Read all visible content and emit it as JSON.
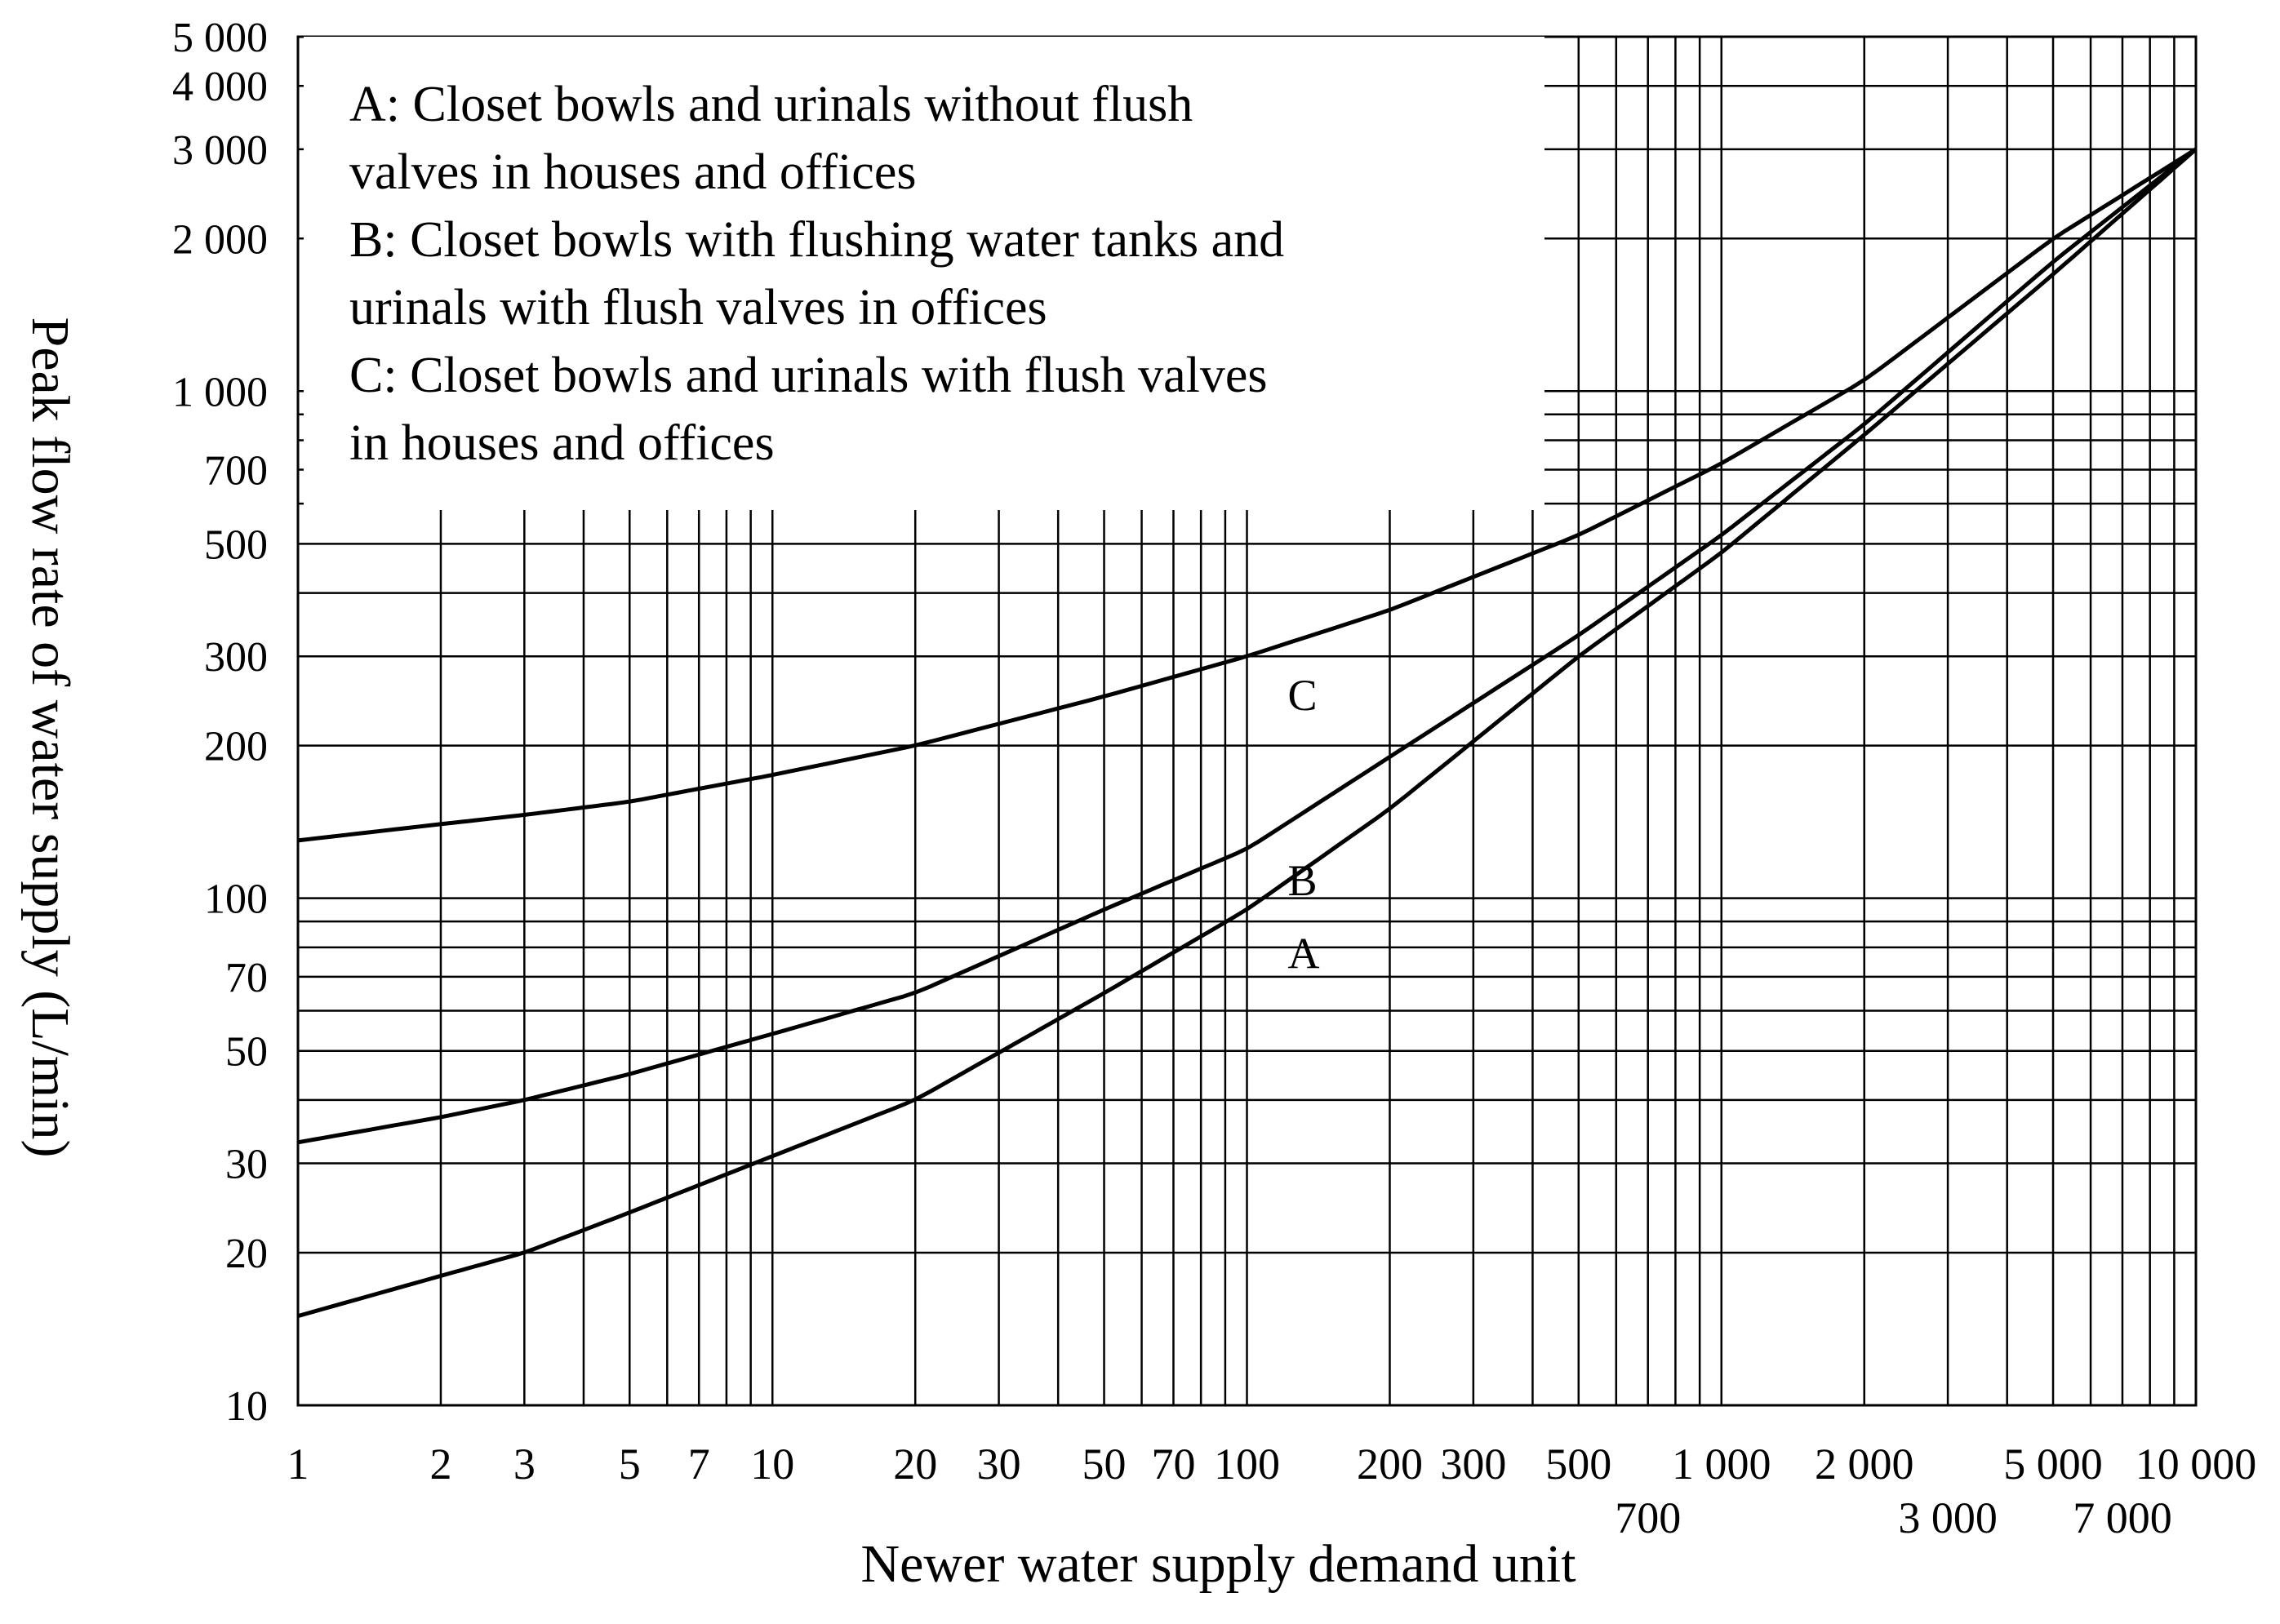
{
  "chart_data": {
    "type": "line",
    "xlabel": "Newer water supply demand unit",
    "ylabel": "Peak flow rate of water supply (L/min)",
    "x_scale": "log",
    "y_scale": "log",
    "xlim": [
      1,
      10000
    ],
    "ylim": [
      10,
      5000
    ],
    "grid": true,
    "x_ticks": [
      {
        "value": 1,
        "label": "1",
        "row": 1
      },
      {
        "value": 2,
        "label": "2",
        "row": 1
      },
      {
        "value": 3,
        "label": "3",
        "row": 1
      },
      {
        "value": 5,
        "label": "5",
        "row": 1
      },
      {
        "value": 7,
        "label": "7",
        "row": 1
      },
      {
        "value": 10,
        "label": "10",
        "row": 1
      },
      {
        "value": 20,
        "label": "20",
        "row": 1
      },
      {
        "value": 30,
        "label": "30",
        "row": 1
      },
      {
        "value": 50,
        "label": "50",
        "row": 1
      },
      {
        "value": 70,
        "label": "70",
        "row": 1
      },
      {
        "value": 100,
        "label": "100",
        "row": 1
      },
      {
        "value": 200,
        "label": "200",
        "row": 1
      },
      {
        "value": 300,
        "label": "300",
        "row": 1
      },
      {
        "value": 500,
        "label": "500",
        "row": 1
      },
      {
        "value": 700,
        "label": "700",
        "row": 2
      },
      {
        "value": 1000,
        "label": "1 000",
        "row": 1
      },
      {
        "value": 2000,
        "label": "2 000",
        "row": 1
      },
      {
        "value": 3000,
        "label": "3 000",
        "row": 2
      },
      {
        "value": 5000,
        "label": "5 000",
        "row": 1
      },
      {
        "value": 7000,
        "label": "7 000",
        "row": 2
      },
      {
        "value": 10000,
        "label": "10 000",
        "row": 1
      }
    ],
    "y_ticks": [
      {
        "value": 10,
        "label": "10"
      },
      {
        "value": 20,
        "label": "20"
      },
      {
        "value": 30,
        "label": "30"
      },
      {
        "value": 50,
        "label": "50"
      },
      {
        "value": 70,
        "label": "70"
      },
      {
        "value": 100,
        "label": "100"
      },
      {
        "value": 200,
        "label": "200"
      },
      {
        "value": 300,
        "label": "300"
      },
      {
        "value": 500,
        "label": "500"
      },
      {
        "value": 700,
        "label": "700"
      },
      {
        "value": 1000,
        "label": "1 000"
      },
      {
        "value": 2000,
        "label": "2 000"
      },
      {
        "value": 3000,
        "label": "3 000"
      },
      {
        "value": 4000,
        "label": "4 000"
      },
      {
        "value": 5000,
        "label": "5 000"
      }
    ],
    "x_gridlines": [
      1,
      2,
      3,
      4,
      5,
      6,
      7,
      8,
      9,
      10,
      20,
      30,
      40,
      50,
      60,
      70,
      80,
      90,
      100,
      200,
      300,
      400,
      500,
      600,
      700,
      800,
      900,
      1000,
      2000,
      3000,
      4000,
      5000,
      6000,
      7000,
      8000,
      9000,
      10000
    ],
    "y_gridlines": [
      10,
      20,
      30,
      40,
      50,
      60,
      70,
      80,
      90,
      100,
      200,
      300,
      400,
      500,
      600,
      700,
      800,
      900,
      1000,
      2000,
      3000,
      4000,
      5000
    ],
    "series": [
      {
        "name": "A",
        "x": [
          1,
          2,
          3,
          5,
          10,
          20,
          50,
          100,
          200,
          500,
          1000,
          2000,
          5000,
          10000
        ],
        "y": [
          15,
          18,
          20,
          24,
          31,
          40,
          65,
          95,
          150,
          300,
          480,
          820,
          1700,
          3000
        ]
      },
      {
        "name": "B",
        "x": [
          1,
          2,
          3,
          5,
          10,
          20,
          50,
          100,
          200,
          500,
          1000,
          2000,
          5000,
          10000
        ],
        "y": [
          33,
          37,
          40,
          45,
          54,
          65,
          95,
          125,
          190,
          330,
          520,
          860,
          1800,
          3000
        ]
      },
      {
        "name": "C",
        "x": [
          1,
          2,
          3,
          5,
          10,
          20,
          50,
          100,
          200,
          500,
          1000,
          2000,
          5000,
          10000
        ],
        "y": [
          130,
          140,
          146,
          155,
          175,
          200,
          250,
          300,
          370,
          520,
          720,
          1050,
          2000,
          3000
        ]
      }
    ],
    "curve_labels": [
      {
        "series": "C",
        "text": "C",
        "x": 120,
        "y": 255
      },
      {
        "series": "B",
        "text": "B",
        "x": 120,
        "y": 110
      },
      {
        "series": "A",
        "text": "A",
        "x": 120,
        "y": 79
      }
    ],
    "legend": {
      "placement": "top-left",
      "lines": [
        "A: Closet bowls and urinals without flush",
        "valves in houses and offices",
        "B: Closet bowls with flushing water tanks and",
        "urinals with flush valves in offices",
        "C: Closet bowls and urinals with flush valves",
        "in houses and offices"
      ]
    }
  }
}
